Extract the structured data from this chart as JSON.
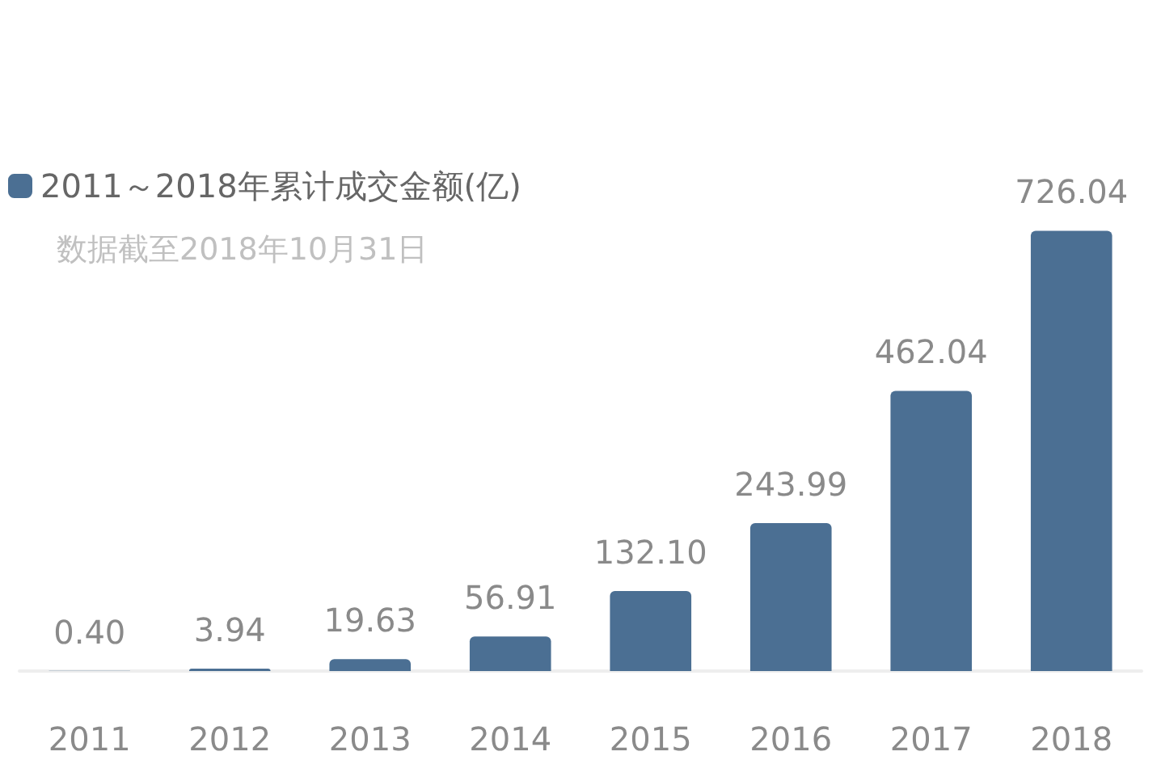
{
  "chart_data": {
    "type": "bar",
    "categories": [
      "2011",
      "2012",
      "2013",
      "2014",
      "2015",
      "2016",
      "2017",
      "2018"
    ],
    "series": [
      {
        "name": "2011～2018年累计成交金额(亿)",
        "color": "#4b6f93",
        "values": [
          0.4,
          3.94,
          19.63,
          56.91,
          132.1,
          243.99,
          462.04,
          726.04
        ],
        "value_labels": [
          "0.40",
          "3.94",
          "19.63",
          "56.91",
          "132.10",
          "243.99",
          "462.04",
          "726.04"
        ]
      }
    ],
    "annotations": [
      "数据截至2018年10月31日"
    ],
    "legend": "top left"
  }
}
